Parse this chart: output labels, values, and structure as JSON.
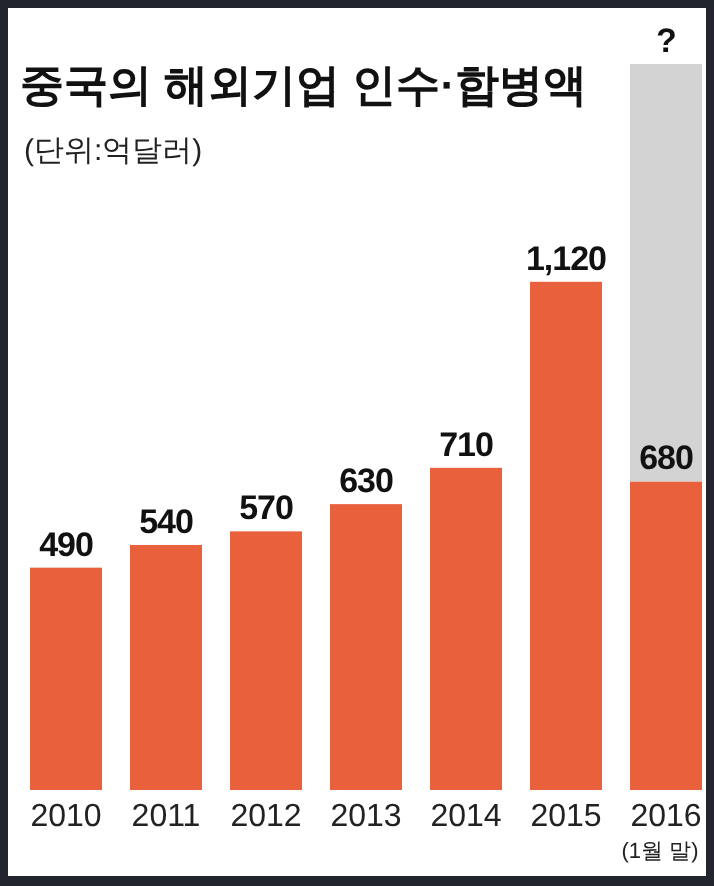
{
  "chart_data": {
    "type": "bar",
    "title": "중국의 해외기업 인수·합병액",
    "subtitle": "(단위:억달러)",
    "categories": [
      "2010",
      "2011",
      "2012",
      "2013",
      "2014",
      "2015",
      "2016\n(1월 말)"
    ],
    "stacked": true,
    "series": [
      {
        "color": "#e8603c",
        "values": [
          490,
          540,
          570,
          630,
          710,
          1120,
          680
        ],
        "value_labels": [
          "490",
          "540",
          "570",
          "630",
          "710",
          "1,120",
          "680"
        ]
      },
      {
        "color": "#d3d3d3",
        "values": [
          null,
          null,
          null,
          null,
          null,
          null,
          920
        ],
        "value_labels": [
          null,
          null,
          null,
          null,
          null,
          null,
          "?"
        ]
      }
    ]
  }
}
